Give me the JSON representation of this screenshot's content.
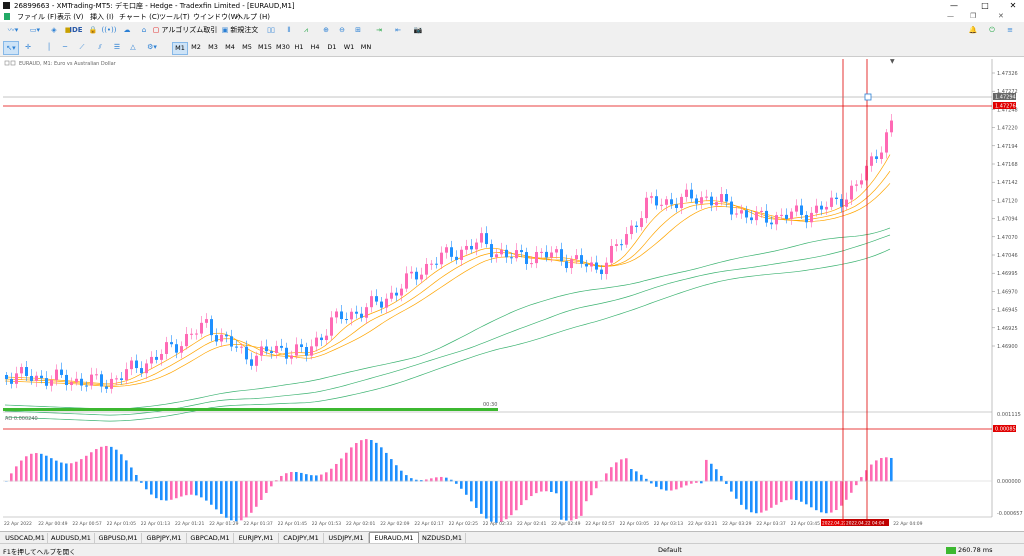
{
  "window": {
    "title": "26899663 - XMTrading-MT5: デモ口座 - Hedge - Tradexfin Limited - [EURAUD,M1]",
    "controls": [
      "—",
      "□",
      "✕"
    ]
  },
  "menu": [
    "ファイル (F)",
    "表示 (V)",
    "挿入 (I)",
    "チャート (C)",
    "ツール(T)",
    "ウインドウ(W)",
    "ヘルプ (H)"
  ],
  "toolbar1": {
    "ide_label": "IDE",
    "algo_label": "アルゴリズム取引",
    "new_order_label": "新規注文"
  },
  "timeframes": [
    "M1",
    "M2",
    "M3",
    "M4",
    "M5",
    "M15",
    "M30",
    "H1",
    "H4",
    "D1",
    "W1",
    "MN"
  ],
  "active_timeframe": "M1",
  "chart": {
    "symbol_label": "EURAUD, M1:  Euro vs Australian Dollar",
    "countdown": "00:30",
    "ao_label": "AO  0.000240",
    "price_labels": [
      "1.47326",
      "1.47272",
      "1.47248",
      "1.47220",
      "1.47194",
      "1.47168",
      "1.47142",
      "1.47120",
      "1.47094",
      "1.47070",
      "1.47046",
      "1.46995",
      "1.46970",
      "1.46945",
      "1.46925",
      "1.46900"
    ],
    "current_price": "1.47294",
    "line_price": "1.47276",
    "ao_scale": [
      "0.001115",
      "0.000000",
      "-0.000657"
    ],
    "ao_line_value": "0.000851",
    "time_labels": [
      "22 Apr 2022",
      "22 Apr 00:49",
      "22 Apr 00:57",
      "22 Apr 01:05",
      "22 Apr 01:13",
      "22 Apr 01:21",
      "22 Apr 01:29",
      "22 Apr 01:37",
      "22 Apr 01:45",
      "22 Apr 01:53",
      "22 Apr 02:01",
      "22 Apr 02:09",
      "22 Apr 02:17",
      "22 Apr 02:25",
      "22 Apr 02:33",
      "22 Apr 02:41",
      "22 Apr 02:49",
      "22 Apr 02:57",
      "22 Apr 03:05",
      "22 Apr 03:13",
      "22 Apr 03:21",
      "22 Apr 03:29",
      "22 Apr 03:37",
      "22 Apr 03:45",
      "22 Apr 03:53",
      "22 Apr 04:01",
      "22 Apr 04:09"
    ],
    "vline_labels": [
      "2022.04.22 04:00",
      "2022.04.22 04:04"
    ],
    "colors": {
      "bull": "#ff69b4",
      "bear": "#1e90ff",
      "ma_fast": "#ffa500",
      "ma_slow": "#3cb371",
      "hline": "#e00000"
    }
  },
  "tabs": [
    "USDCAD,M1",
    "AUDUSD,M1",
    "GBPUSD,M1",
    "GBPJPY,M1",
    "GBPCAD,M1",
    "EURJPY,M1",
    "CADJPY,M1",
    "USDJPY,M1",
    "EURAUD,M1",
    "NZDUSD,M1"
  ],
  "active_tab": "EURAUD,M1",
  "status": {
    "help": "F1を押してヘルプを開く",
    "profile": "Default",
    "ping": "260.78 ms"
  }
}
